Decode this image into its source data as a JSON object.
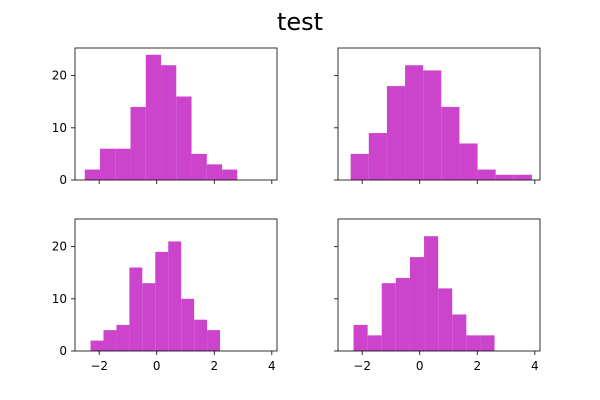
{
  "chart_data": {
    "type": "bar",
    "title": "test",
    "bar_color": "#cc44cc",
    "x_ticks": [
      -2,
      0,
      2,
      4
    ],
    "y_ticks": [
      0,
      10,
      20
    ],
    "xlim": [
      -2.84,
      4.18
    ],
    "ylim": [
      0,
      25.3
    ],
    "sharex": true,
    "sharey": true,
    "panels": [
      {
        "bins": [
          -2.5,
          -1.97,
          -1.44,
          -0.91,
          -0.38,
          0.15,
          0.68,
          1.21,
          1.74,
          2.27,
          2.8
        ],
        "counts": [
          2,
          6,
          6,
          14,
          24,
          22,
          16,
          5,
          3,
          2
        ]
      },
      {
        "bins": [
          -2.4,
          -1.77,
          -1.14,
          -0.51,
          0.12,
          0.75,
          1.38,
          2.01,
          2.64,
          3.27,
          3.9
        ],
        "counts": [
          5,
          9,
          18,
          22,
          21,
          14,
          7,
          2,
          1,
          1
        ]
      },
      {
        "bins": [
          -2.3,
          -1.85,
          -1.4,
          -0.95,
          -0.5,
          -0.05,
          0.4,
          0.85,
          1.3,
          1.75,
          2.2
        ],
        "counts": [
          2,
          4,
          5,
          16,
          13,
          19,
          21,
          10,
          6,
          4
        ]
      },
      {
        "bins": [
          -2.3,
          -1.81,
          -1.32,
          -0.83,
          -0.34,
          0.15,
          0.64,
          1.13,
          1.62,
          2.11,
          2.6
        ],
        "counts": [
          5,
          3,
          13,
          14,
          18,
          22,
          12,
          7,
          3,
          3
        ]
      }
    ]
  }
}
